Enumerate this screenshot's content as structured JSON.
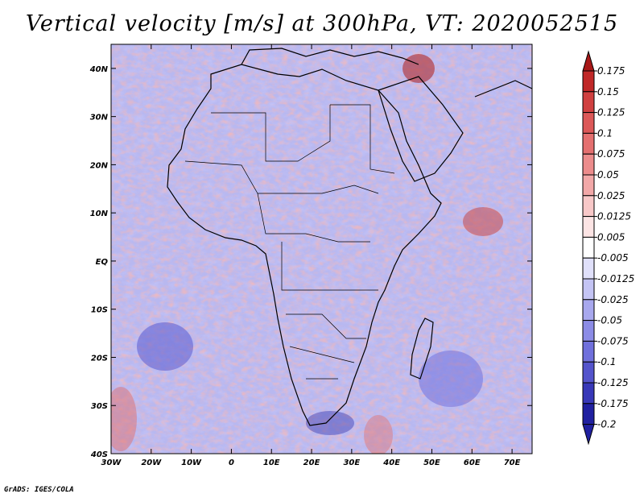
{
  "title": "Vertical velocity [m/s] at 300hPa, VT: 2020052515",
  "credit": "GrADS: IGES/COLA",
  "map": {
    "lon_labels": [
      "30W",
      "20W",
      "10W",
      "0",
      "10E",
      "20E",
      "30E",
      "40E",
      "50E",
      "60E",
      "70E"
    ],
    "lat_labels": [
      "40N",
      "30N",
      "20N",
      "10N",
      "EQ",
      "10S",
      "20S",
      "30S",
      "40S"
    ],
    "lon_range": [
      -30,
      75
    ],
    "lat_range": [
      -40,
      45
    ]
  },
  "colorbar": {
    "labels": [
      "0.175",
      "0.15",
      "0.125",
      "0.1",
      "0.075",
      "0.05",
      "0.025",
      "0.0125",
      "0.005",
      "-0.005",
      "-0.0125",
      "-0.025",
      "-0.05",
      "-0.075",
      "-0.1",
      "-0.125",
      "-0.175",
      "-0.2"
    ],
    "colors": [
      "#a81818",
      "#c02828",
      "#d04040",
      "#dc5858",
      "#e47070",
      "#ec8c8c",
      "#f2a8a8",
      "#f8c8c8",
      "#fce4e4",
      "#ffffff",
      "#e0e0fa",
      "#c4c4f4",
      "#a8a8ee",
      "#8c8ce6",
      "#7070dc",
      "#5454cc",
      "#3838b8",
      "#2020a0"
    ]
  },
  "colors": {
    "blue": "#8a8af0",
    "red": "#e88080",
    "ocean_base": "#b0b0ee"
  }
}
